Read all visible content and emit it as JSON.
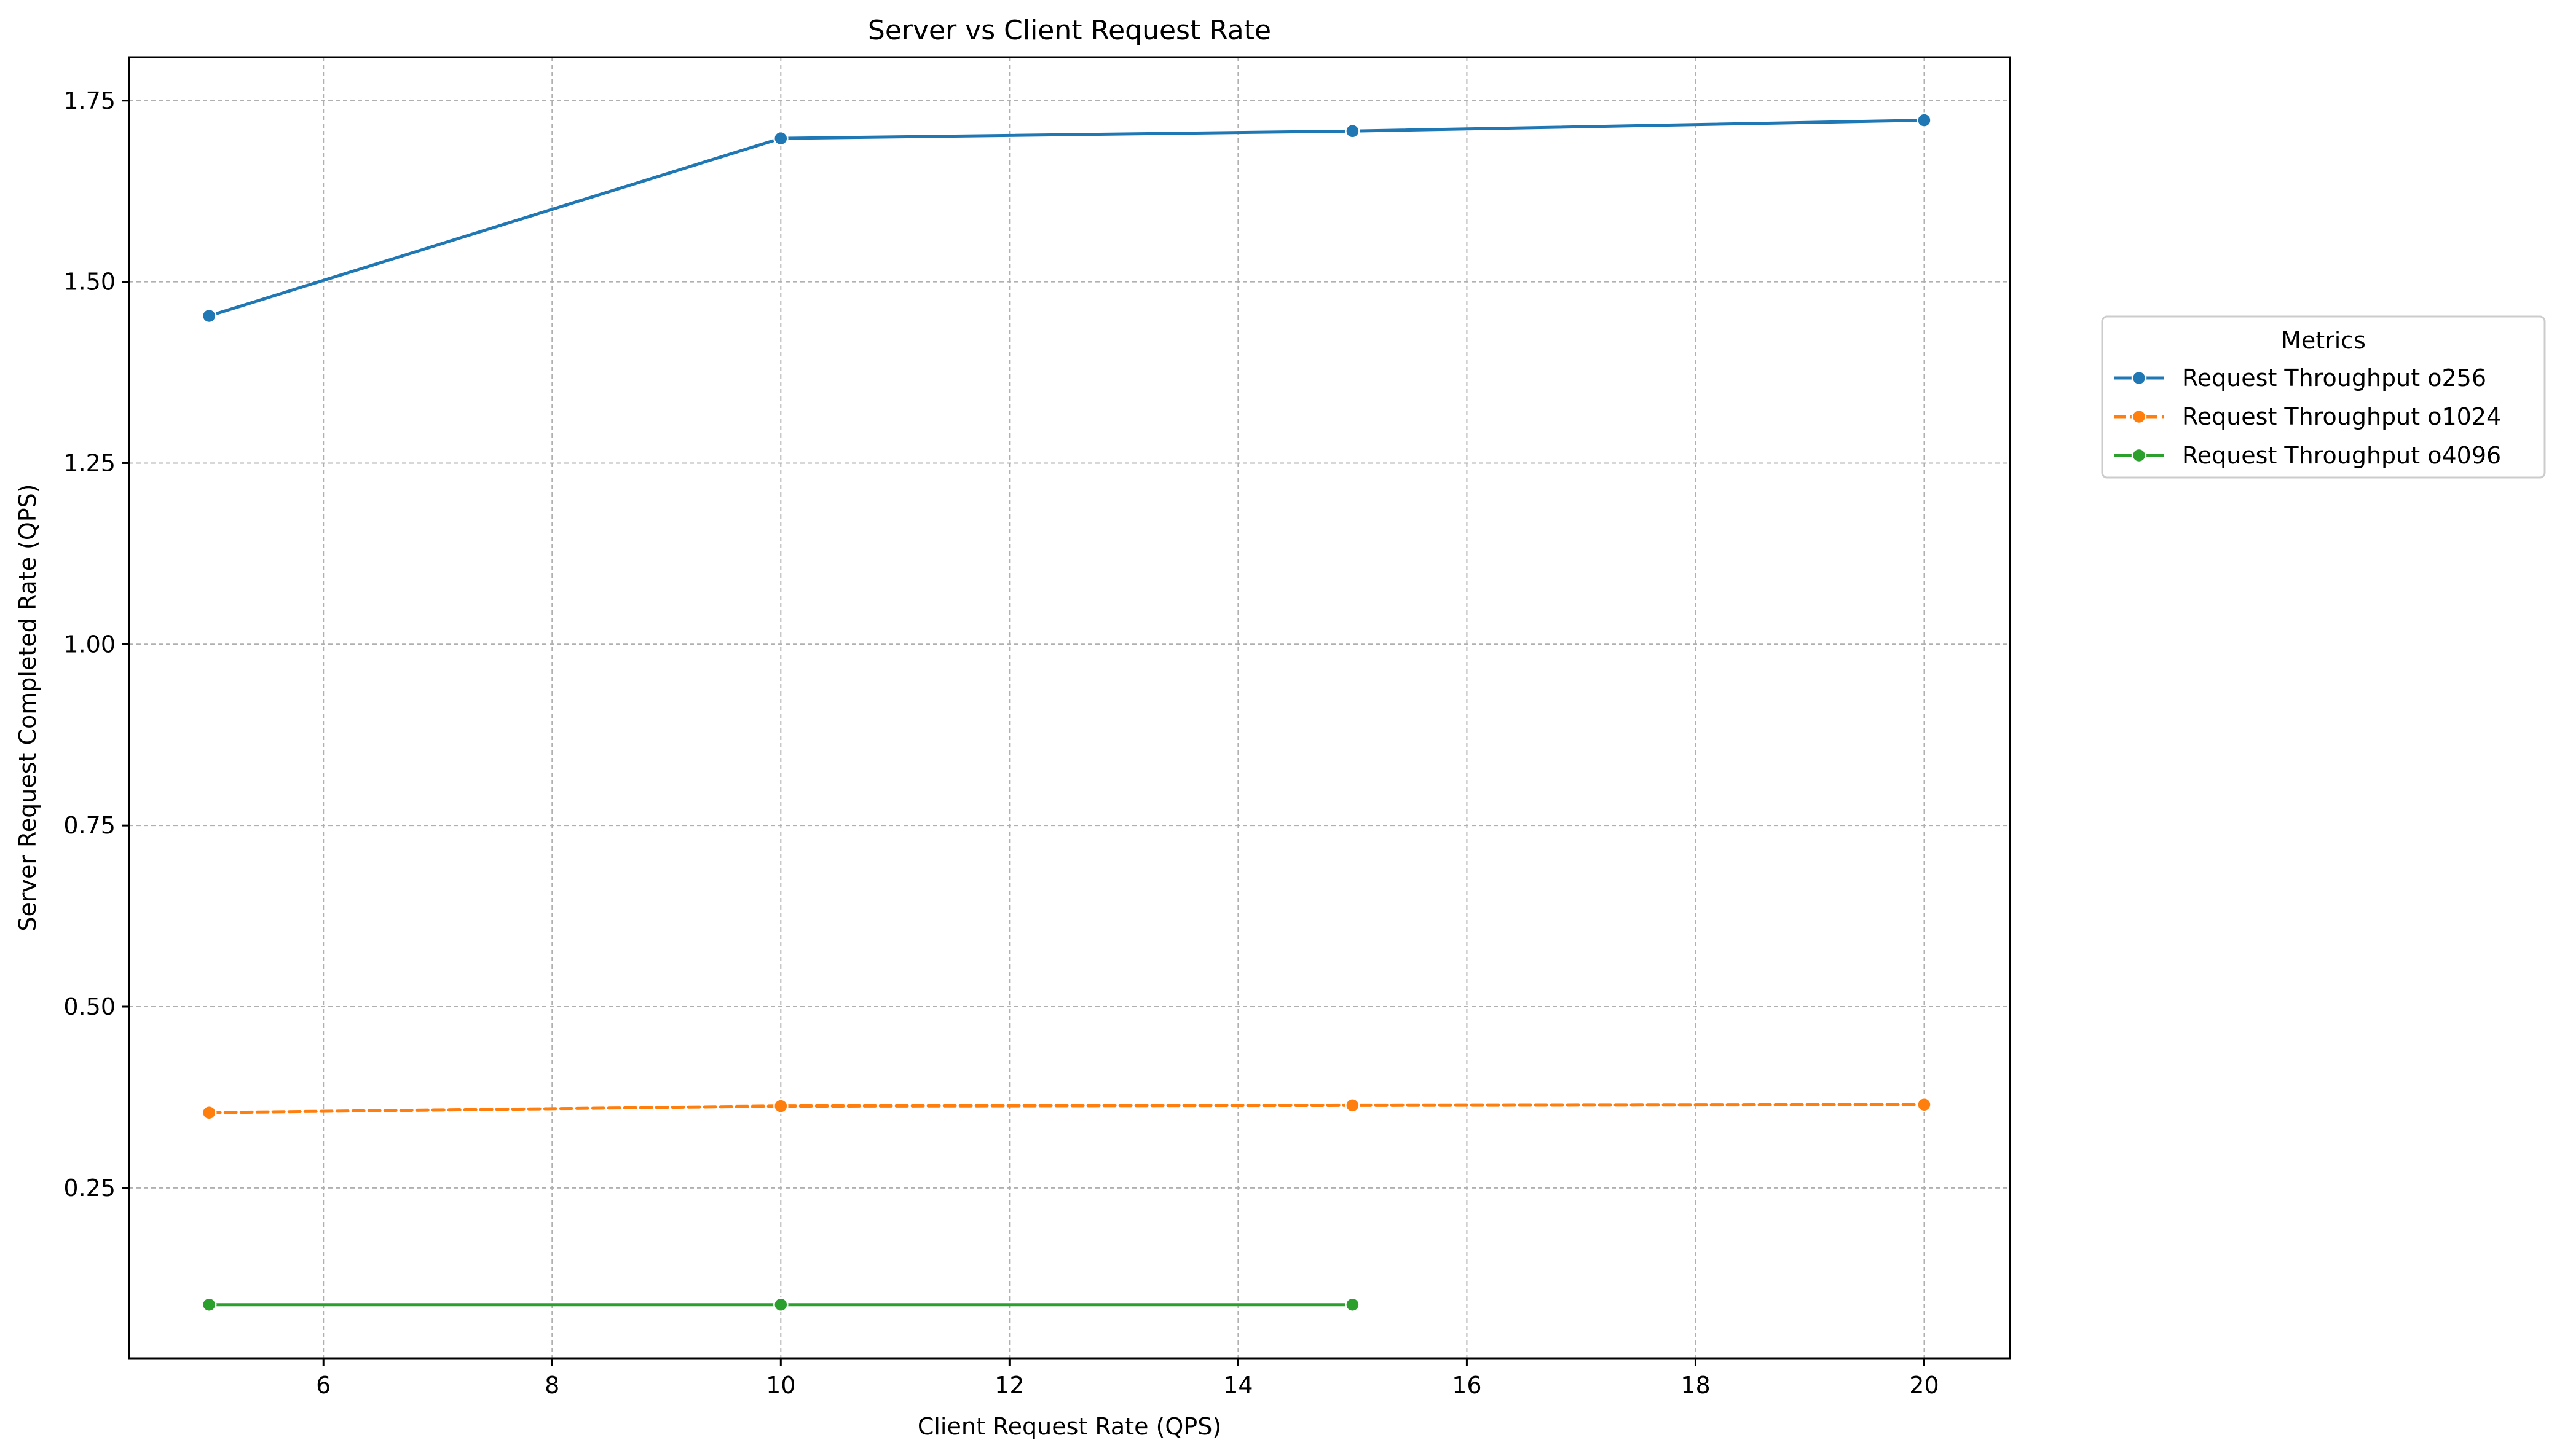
{
  "chart_data": {
    "type": "line",
    "title": "Server vs Client Request Rate",
    "xlabel": "Client Request Rate (QPS)",
    "ylabel": "Server Request Completed Rate (QPS)",
    "xlim": [
      4.3,
      20.75
    ],
    "ylim": [
      0.015,
      1.81
    ],
    "xticks": [
      6,
      8,
      10,
      12,
      14,
      16,
      18,
      20
    ],
    "xtick_labels": [
      "6",
      "8",
      "10",
      "12",
      "14",
      "16",
      "18",
      "20"
    ],
    "yticks": [
      0.25,
      0.5,
      0.75,
      1.0,
      1.25,
      1.5,
      1.75
    ],
    "ytick_labels": [
      "0.25",
      "0.50",
      "0.75",
      "1.00",
      "1.25",
      "1.50",
      "1.75"
    ],
    "grid": true,
    "legend": {
      "title": "Metrics",
      "placement": "outside-right"
    },
    "series": [
      {
        "name": "Request Throughput o256",
        "color": "#1f77b4",
        "dash": "solid",
        "x": [
          5,
          10,
          15,
          20
        ],
        "y": [
          1.453,
          1.698,
          1.708,
          1.723
        ]
      },
      {
        "name": "Request Throughput o1024",
        "color": "#ff7f0e",
        "dash": "dashed",
        "x": [
          5,
          10,
          15,
          20
        ],
        "y": [
          0.354,
          0.363,
          0.364,
          0.365
        ]
      },
      {
        "name": "Request Throughput o4096",
        "color": "#2ca02c",
        "dash": "solid",
        "x": [
          5,
          10,
          15
        ],
        "y": [
          0.089,
          0.089,
          0.089
        ]
      }
    ]
  }
}
